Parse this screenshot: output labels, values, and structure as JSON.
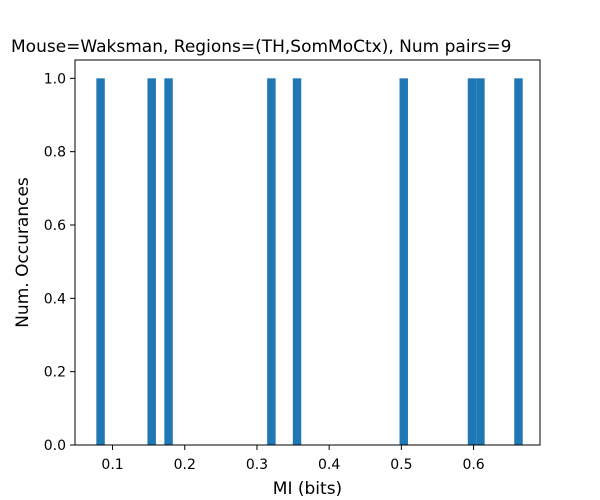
{
  "chart_data": {
    "type": "bar",
    "title": "Mouse=Waksman, Regions=(TH,SomMoCtx), Num pairs=9",
    "xlabel": "MI (bits)",
    "ylabel": "Num. Occurances",
    "xlim": [
      0.048,
      0.692
    ],
    "ylim": [
      0,
      1.05
    ],
    "xticks": [
      "0.1",
      "0.2",
      "0.3",
      "0.4",
      "0.5",
      "0.6"
    ],
    "yticks": [
      "0.0",
      "0.2",
      "0.4",
      "0.6",
      "0.8",
      "1.0"
    ],
    "bar_color": "#1f77b4",
    "bin_width": 0.0117,
    "bins": [
      {
        "x": 0.0834,
        "count": 1
      },
      {
        "x": 0.1542,
        "count": 1
      },
      {
        "x": 0.1776,
        "count": 1
      },
      {
        "x": 0.32,
        "count": 1
      },
      {
        "x": 0.3555,
        "count": 1
      },
      {
        "x": 0.5033,
        "count": 1
      },
      {
        "x": 0.5978,
        "count": 1
      },
      {
        "x": 0.6095,
        "count": 1
      },
      {
        "x": 0.6622,
        "count": 1
      }
    ],
    "grid": false,
    "legend": "none"
  }
}
